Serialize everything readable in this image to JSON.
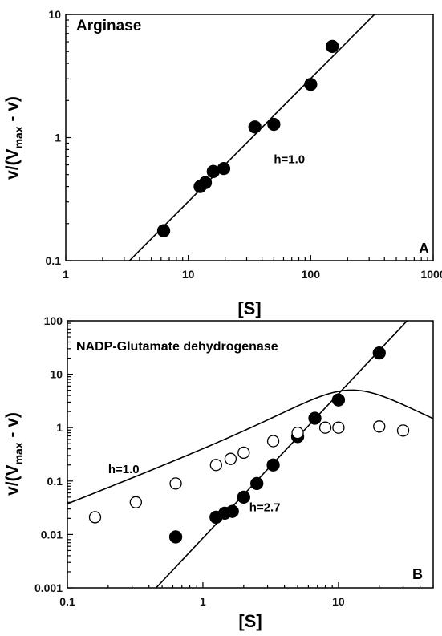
{
  "chart_data": [
    {
      "type": "scatter",
      "panel_letter": "A",
      "title": "Arginase",
      "xlabel": "[S]",
      "ylabel_main": "v/(V",
      "ylabel_sub": "max",
      "ylabel_end": " - v)",
      "xscale": "log",
      "yscale": "log",
      "xlim": [
        1,
        1000
      ],
      "ylim": [
        0.1,
        10
      ],
      "x_tick_labels": [
        "1",
        "10",
        "100",
        "1000"
      ],
      "y_tick_labels": [
        "0.1",
        "1",
        "10"
      ],
      "grid": false,
      "series": [
        {
          "marker": "filled",
          "x": [
            6.3,
            12.5,
            13.8,
            16,
            19.5,
            35,
            50,
            100,
            150
          ],
          "y": [
            0.175,
            0.4,
            0.43,
            0.53,
            0.56,
            1.22,
            1.28,
            2.7,
            5.5
          ]
        }
      ],
      "fit_lines": [
        {
          "slope": 1.0,
          "through": [
            6.3,
            0.19
          ],
          "x_range": [
            3.3,
            380
          ]
        }
      ],
      "annotations": [
        {
          "text": "h=1.0",
          "x": 50,
          "y": 0.62
        }
      ]
    },
    {
      "type": "scatter",
      "panel_letter": "B",
      "title": "NADP-Glutamate dehydrogenase",
      "xlabel": "[S]",
      "ylabel_main": "v/(V",
      "ylabel_sub": "max",
      "ylabel_end": " - v)",
      "xscale": "log",
      "yscale": "log",
      "xlim": [
        0.1,
        50
      ],
      "ylim": [
        0.001,
        100
      ],
      "x_tick_labels": [
        "0.1",
        "1",
        "10"
      ],
      "y_tick_labels": [
        "0.001",
        "0.01",
        "0.1",
        "1",
        "10",
        "100"
      ],
      "grid": false,
      "series": [
        {
          "marker": "filled",
          "x": [
            0.63,
            1.25,
            1.45,
            1.65,
            2.0,
            2.5,
            3.3,
            5.0,
            6.7,
            10,
            20
          ],
          "y": [
            0.009,
            0.021,
            0.025,
            0.027,
            0.05,
            0.09,
            0.2,
            0.68,
            1.5,
            3.3,
            25
          ]
        },
        {
          "marker": "open",
          "x": [
            0.16,
            0.32,
            0.63,
            1.25,
            1.6,
            2.0,
            3.3,
            5.0,
            8.0,
            10,
            20,
            30
          ],
          "y": [
            0.021,
            0.04,
            0.09,
            0.2,
            0.26,
            0.34,
            0.56,
            0.8,
            1.0,
            1.0,
            1.05,
            0.88
          ]
        }
      ],
      "fit_lines": [
        {
          "slope": 2.7,
          "through": [
            5,
            0.66
          ],
          "x_range": [
            0.45,
            50
          ]
        }
      ],
      "fit_curves": [
        {
          "model": "substrate-inhibition",
          "vmax": 1.3,
          "km": 3.5,
          "ki": 45,
          "x_range": [
            0.1,
            50
          ]
        }
      ],
      "annotations": [
        {
          "text": "h=1.0",
          "x": 0.2,
          "y": 0.14
        },
        {
          "text": "h=2.7",
          "x": 2.2,
          "y": 0.027
        }
      ]
    }
  ]
}
